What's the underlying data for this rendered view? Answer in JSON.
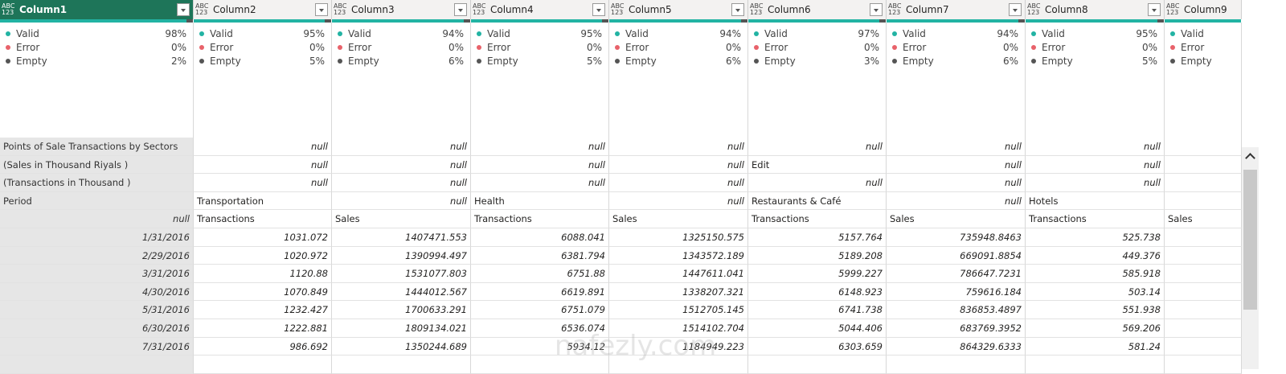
{
  "columns": [
    {
      "name": "Column1",
      "type": "ABC\n123",
      "valid": "98%",
      "error": "0%",
      "empty": "2%",
      "selected": true
    },
    {
      "name": "Column2",
      "type": "ABC\n123",
      "valid": "95%",
      "error": "0%",
      "empty": "5%"
    },
    {
      "name": "Column3",
      "type": "ABC\n123",
      "valid": "94%",
      "error": "0%",
      "empty": "6%"
    },
    {
      "name": "Column4",
      "type": "ABC\n123",
      "valid": "95%",
      "error": "0%",
      "empty": "5%"
    },
    {
      "name": "Column5",
      "type": "ABC\n123",
      "valid": "94%",
      "error": "0%",
      "empty": "6%"
    },
    {
      "name": "Column6",
      "type": "ABC\n123",
      "valid": "97%",
      "error": "0%",
      "empty": "3%"
    },
    {
      "name": "Column7",
      "type": "ABC\n123",
      "valid": "94%",
      "error": "0%",
      "empty": "6%"
    },
    {
      "name": "Column8",
      "type": "ABC\n123",
      "valid": "95%",
      "error": "0%",
      "empty": "5%"
    },
    {
      "name": "Column9",
      "type": "ABC\n123",
      "valid": "",
      "error": "",
      "empty": ""
    }
  ],
  "quality_labels": {
    "valid": "Valid",
    "error": "Error",
    "empty": "Empty"
  },
  "colors": {
    "valid": "#22b3a3",
    "error": "#e8626a",
    "empty": "#555555",
    "header_selected": "#1e7559"
  },
  "rows": [
    [
      "Points of Sale Transactions by Sectors",
      "null",
      "null",
      "null",
      "null",
      "null",
      "null",
      "null",
      ""
    ],
    [
      "(Sales in Thousand Riyals )",
      "null",
      "null",
      "null",
      "null",
      "Edit",
      "null",
      "null",
      ""
    ],
    [
      "(Transactions in Thousand )",
      "null",
      "null",
      "null",
      "null",
      "null",
      "null",
      "null",
      ""
    ],
    [
      "Period",
      "Transportation",
      "null",
      "Health",
      "null",
      "Restaurants & Café",
      "null",
      "Hotels",
      ""
    ],
    [
      "null",
      "Transactions",
      "Sales",
      "Transactions",
      "Sales",
      "Transactions",
      "Sales",
      "Transactions",
      "Sales"
    ],
    [
      "1/31/2016",
      "1031.072",
      "1407471.553",
      "6088.041",
      "1325150.575",
      "5157.764",
      "735948.8463",
      "525.738",
      ""
    ],
    [
      "2/29/2016",
      "1020.972",
      "1390994.497",
      "6381.794",
      "1343572.189",
      "5189.208",
      "669091.8854",
      "449.376",
      ""
    ],
    [
      "3/31/2016",
      "1120.88",
      "1531077.803",
      "6751.88",
      "1447611.041",
      "5999.227",
      "786647.7231",
      "585.918",
      ""
    ],
    [
      "4/30/2016",
      "1070.849",
      "1444012.567",
      "6619.891",
      "1338207.321",
      "6148.923",
      "759616.184",
      "503.14",
      ""
    ],
    [
      "5/31/2016",
      "1232.427",
      "1700633.291",
      "6751.079",
      "1512705.145",
      "6741.738",
      "836853.4897",
      "551.938",
      ""
    ],
    [
      "6/30/2016",
      "1222.881",
      "1809134.021",
      "6536.074",
      "1514102.704",
      "5044.406",
      "683769.3952",
      "569.206",
      ""
    ],
    [
      "7/31/2016",
      "986.692",
      "1350244.689",
      "5934.12",
      "1184949.223",
      "6303.659",
      "864329.6333",
      "581.24",
      ""
    ],
    [
      "",
      "",
      "",
      "",
      "",
      "",
      "",
      "",
      ""
    ]
  ],
  "watermark": "nafezly.com"
}
